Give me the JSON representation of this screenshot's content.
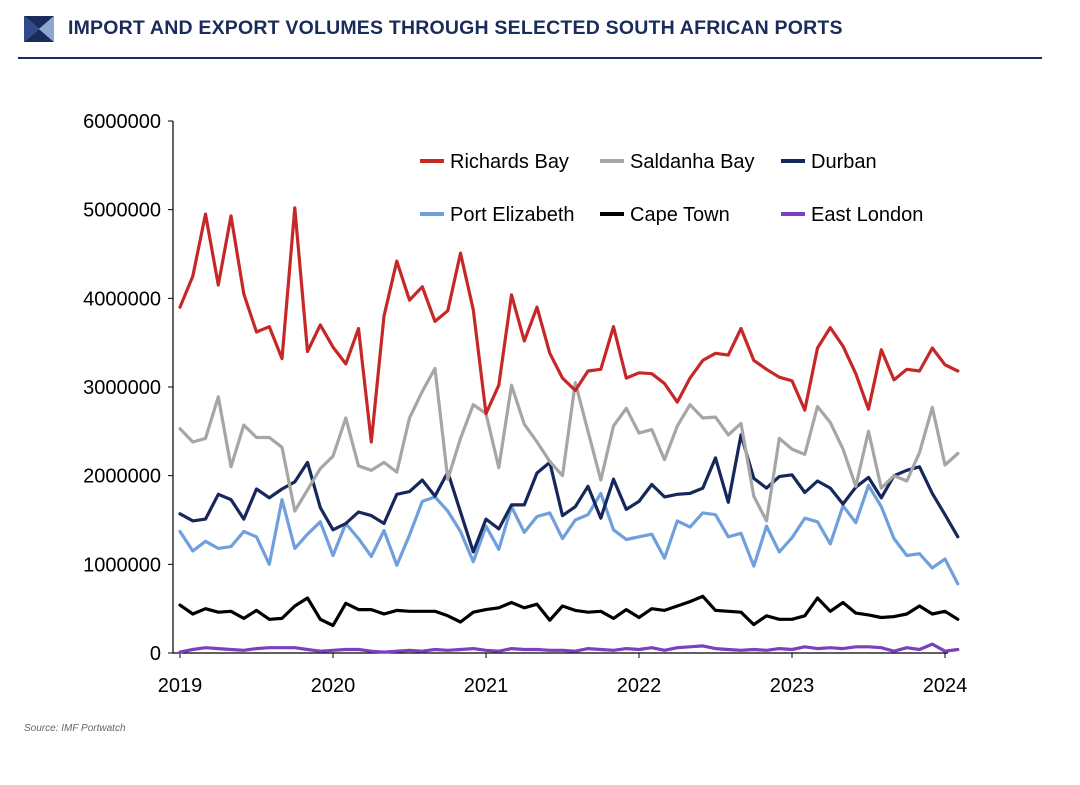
{
  "header": {
    "title": "IMPORT AND EXPORT VOLUMES THROUGH SELECTED SOUTH AFRICAN PORTS",
    "logo_icon": "triangular-arrow-logo-icon",
    "brand_color": "#1a2c5c"
  },
  "source": "Source: IMF Portwatch",
  "chart_data": {
    "type": "line",
    "title": "",
    "xlabel": "",
    "ylabel": "",
    "x_start": "2019-01",
    "x_step": "month",
    "xlim": [
      "2019-01",
      "2024-02"
    ],
    "x_tick_labels": [
      "2019",
      "2020",
      "2021",
      "2022",
      "2023",
      "2024"
    ],
    "ylim": [
      0,
      6000000
    ],
    "y_tick_labels": [
      "0",
      "1000000",
      "2000000",
      "3000000",
      "4000000",
      "5000000",
      "6000000"
    ],
    "grid": false,
    "legend_position": "top-right",
    "series": [
      {
        "name": "Richards Bay",
        "color": "#c62828",
        "values": [
          3900000,
          4250000,
          4950000,
          4150000,
          4930000,
          4050000,
          3620000,
          3680000,
          3320000,
          5020000,
          3400000,
          3700000,
          3450000,
          3260000,
          3660000,
          2380000,
          3800000,
          4420000,
          3980000,
          4130000,
          3740000,
          3860000,
          4510000,
          3870000,
          2700000,
          3020000,
          4040000,
          3520000,
          3900000,
          3380000,
          3100000,
          2960000,
          3180000,
          3200000,
          3680000,
          3100000,
          3160000,
          3150000,
          3040000,
          2830000,
          3100000,
          3300000,
          3380000,
          3360000,
          3660000,
          3300000,
          3200000,
          3110000,
          3070000,
          2740000,
          3440000,
          3670000,
          3460000,
          3150000,
          2750000,
          3420000,
          3080000,
          3200000,
          3180000,
          3440000,
          3250000,
          3180000
        ]
      },
      {
        "name": "Saldanha Bay",
        "color": "#a6a6a6",
        "values": [
          2530000,
          2380000,
          2420000,
          2890000,
          2100000,
          2570000,
          2430000,
          2430000,
          2320000,
          1600000,
          1840000,
          2080000,
          2220000,
          2650000,
          2110000,
          2060000,
          2150000,
          2040000,
          2650000,
          2950000,
          3210000,
          1960000,
          2420000,
          2800000,
          2700000,
          2090000,
          3020000,
          2580000,
          2380000,
          2160000,
          2000000,
          3050000,
          2500000,
          1950000,
          2560000,
          2760000,
          2480000,
          2520000,
          2180000,
          2560000,
          2800000,
          2650000,
          2660000,
          2460000,
          2590000,
          1770000,
          1490000,
          2420000,
          2300000,
          2240000,
          2780000,
          2600000,
          2300000,
          1880000,
          2500000,
          1860000,
          2000000,
          1940000,
          2260000,
          2770000,
          2120000,
          2250000
        ]
      },
      {
        "name": "Durban",
        "color": "#16275c",
        "values": [
          1570000,
          1490000,
          1510000,
          1790000,
          1730000,
          1510000,
          1850000,
          1750000,
          1850000,
          1930000,
          2150000,
          1640000,
          1390000,
          1460000,
          1590000,
          1550000,
          1460000,
          1790000,
          1820000,
          1950000,
          1770000,
          2040000,
          1590000,
          1140000,
          1510000,
          1400000,
          1670000,
          1670000,
          2030000,
          2150000,
          1550000,
          1650000,
          1880000,
          1520000,
          1960000,
          1620000,
          1710000,
          1900000,
          1760000,
          1790000,
          1800000,
          1860000,
          2200000,
          1700000,
          2460000,
          1970000,
          1860000,
          1990000,
          2010000,
          1810000,
          1940000,
          1860000,
          1680000,
          1870000,
          1980000,
          1750000,
          2000000,
          2060000,
          2100000,
          1800000,
          1560000,
          1310000
        ]
      },
      {
        "name": "Port Elizabeth",
        "color": "#6fa0dc",
        "values": [
          1370000,
          1150000,
          1260000,
          1180000,
          1200000,
          1370000,
          1310000,
          1000000,
          1730000,
          1180000,
          1340000,
          1480000,
          1100000,
          1460000,
          1290000,
          1090000,
          1380000,
          990000,
          1330000,
          1710000,
          1760000,
          1600000,
          1370000,
          1030000,
          1430000,
          1170000,
          1650000,
          1360000,
          1540000,
          1580000,
          1290000,
          1500000,
          1560000,
          1800000,
          1390000,
          1280000,
          1310000,
          1340000,
          1070000,
          1490000,
          1420000,
          1580000,
          1560000,
          1310000,
          1350000,
          980000,
          1430000,
          1140000,
          1300000,
          1520000,
          1480000,
          1230000,
          1660000,
          1470000,
          1890000,
          1650000,
          1290000,
          1100000,
          1120000,
          960000,
          1060000,
          780000
        ]
      },
      {
        "name": "Cape Town",
        "color": "#000000",
        "values": [
          540000,
          440000,
          500000,
          460000,
          470000,
          390000,
          480000,
          380000,
          390000,
          530000,
          620000,
          380000,
          310000,
          560000,
          490000,
          490000,
          440000,
          480000,
          470000,
          470000,
          470000,
          420000,
          350000,
          460000,
          490000,
          510000,
          570000,
          510000,
          550000,
          370000,
          530000,
          480000,
          460000,
          470000,
          390000,
          490000,
          400000,
          500000,
          480000,
          530000,
          580000,
          640000,
          480000,
          470000,
          460000,
          320000,
          420000,
          380000,
          380000,
          420000,
          620000,
          470000,
          570000,
          450000,
          430000,
          400000,
          410000,
          440000,
          530000,
          440000,
          470000,
          380000
        ]
      },
      {
        "name": "East London",
        "color": "#7b3fbf",
        "values": [
          10000,
          40000,
          60000,
          50000,
          40000,
          30000,
          50000,
          60000,
          60000,
          60000,
          40000,
          20000,
          30000,
          40000,
          40000,
          20000,
          10000,
          20000,
          30000,
          20000,
          40000,
          30000,
          40000,
          50000,
          30000,
          20000,
          50000,
          40000,
          40000,
          30000,
          30000,
          20000,
          50000,
          40000,
          30000,
          50000,
          40000,
          60000,
          30000,
          60000,
          70000,
          80000,
          50000,
          40000,
          30000,
          40000,
          30000,
          50000,
          40000,
          70000,
          50000,
          60000,
          50000,
          70000,
          70000,
          60000,
          20000,
          60000,
          40000,
          100000,
          20000,
          40000
        ]
      }
    ]
  }
}
